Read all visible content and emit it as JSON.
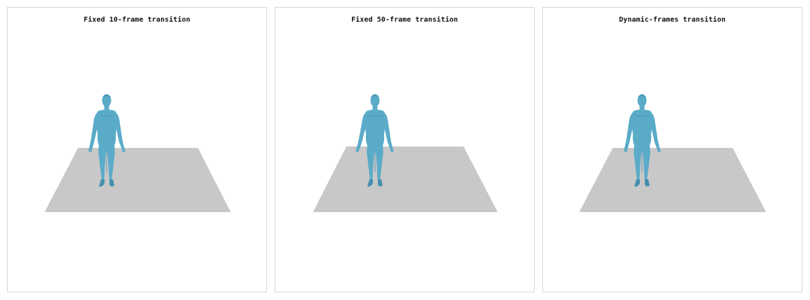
{
  "panels": [
    {
      "title": "Fixed 10-frame transition"
    },
    {
      "title": "Fixed 50-frame transition"
    },
    {
      "title": "Dynamic-frames transition"
    }
  ],
  "colors": {
    "floor": "#c8c8c8",
    "body": "#5aabc8",
    "body_shade": "#4690ae",
    "panel_border": "#d6d6d6"
  },
  "icons": {
    "figure": "human-figure-icon",
    "floor": "floor-plane"
  }
}
